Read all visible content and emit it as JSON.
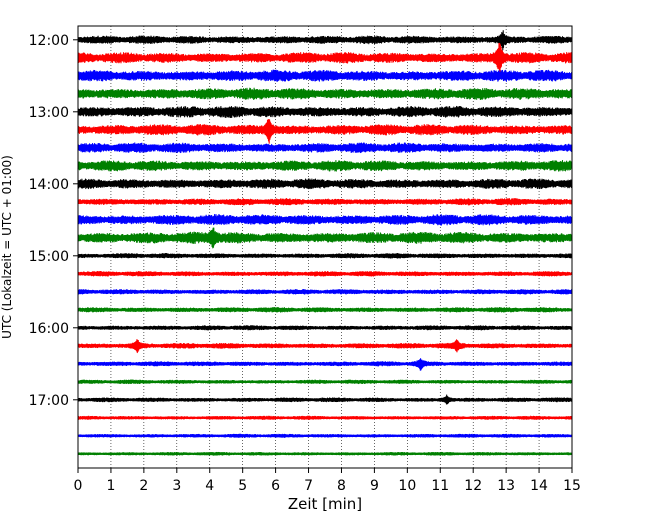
{
  "chart_data": {
    "type": "line",
    "title": "",
    "xlabel": "Zeit  [min]",
    "ylabel": "UTC (Lokalzeit = UTC + 01:00)",
    "xlim": [
      0,
      15
    ],
    "x_ticks": [
      0,
      1,
      2,
      3,
      4,
      5,
      6,
      7,
      8,
      9,
      10,
      11,
      12,
      13,
      14,
      15
    ],
    "y_ticks": [
      "12:00",
      "13:00",
      "14:00",
      "15:00",
      "16:00",
      "17:00"
    ],
    "grid": "vertical-dotted",
    "line_colors": [
      "#000000",
      "#ff0000",
      "#0000ff",
      "#008000"
    ],
    "traces": [
      {
        "start": "12:00",
        "amplitude": 0.22,
        "events": [
          {
            "at_min": 12.9,
            "peak": 0.45
          }
        ]
      },
      {
        "start": "12:15",
        "amplitude": 0.3,
        "events": [
          {
            "at_min": 12.8,
            "peak": 0.95
          }
        ]
      },
      {
        "start": "12:30",
        "amplitude": 0.32,
        "events": []
      },
      {
        "start": "12:45",
        "amplitude": 0.32,
        "events": []
      },
      {
        "start": "13:00",
        "amplitude": 0.32,
        "events": []
      },
      {
        "start": "13:15",
        "amplitude": 0.3,
        "events": [
          {
            "at_min": 5.8,
            "peak": 0.7
          }
        ]
      },
      {
        "start": "13:30",
        "amplitude": 0.28,
        "events": []
      },
      {
        "start": "13:45",
        "amplitude": 0.3,
        "events": []
      },
      {
        "start": "14:00",
        "amplitude": 0.28,
        "events": []
      },
      {
        "start": "14:15",
        "amplitude": 0.18,
        "events": []
      },
      {
        "start": "14:30",
        "amplitude": 0.3,
        "events": []
      },
      {
        "start": "14:45",
        "amplitude": 0.32,
        "events": [
          {
            "at_min": 4.1,
            "peak": 0.6
          }
        ]
      },
      {
        "start": "15:00",
        "amplitude": 0.13,
        "events": []
      },
      {
        "start": "15:15",
        "amplitude": 0.13,
        "events": []
      },
      {
        "start": "15:30",
        "amplitude": 0.13,
        "events": []
      },
      {
        "start": "15:45",
        "amplitude": 0.13,
        "events": []
      },
      {
        "start": "16:00",
        "amplitude": 0.12,
        "events": []
      },
      {
        "start": "16:15",
        "amplitude": 0.14,
        "events": [
          {
            "at_min": 1.8,
            "peak": 0.35
          },
          {
            "at_min": 11.5,
            "peak": 0.3
          }
        ]
      },
      {
        "start": "16:30",
        "amplitude": 0.12,
        "events": [
          {
            "at_min": 10.4,
            "peak": 0.3
          }
        ]
      },
      {
        "start": "16:45",
        "amplitude": 0.1,
        "events": []
      },
      {
        "start": "17:00",
        "amplitude": 0.11,
        "events": [
          {
            "at_min": 11.2,
            "peak": 0.25
          }
        ]
      },
      {
        "start": "17:15",
        "amplitude": 0.09,
        "events": []
      },
      {
        "start": "17:30",
        "amplitude": 0.09,
        "events": []
      },
      {
        "start": "17:45",
        "amplitude": 0.08,
        "events": []
      }
    ]
  }
}
